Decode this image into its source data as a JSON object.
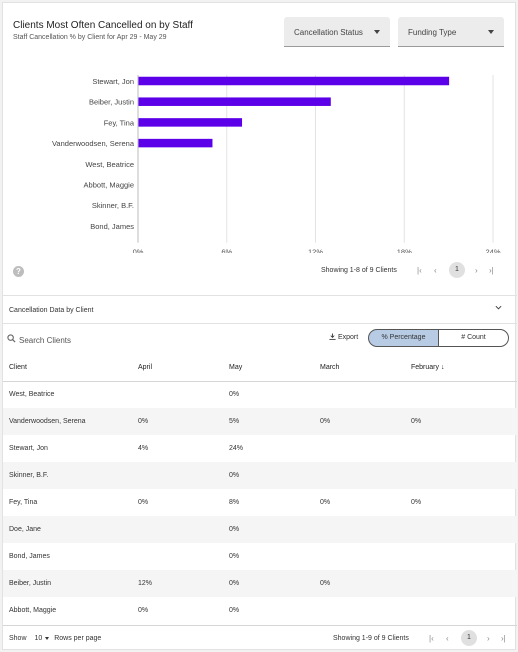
{
  "header": {
    "title": "Clients Most Often Cancelled on by Staff",
    "subtitle": "Staff Cancellation % by Client for Apr 29 - May 29"
  },
  "filters": {
    "cancellation_status": "Cancellation Status",
    "funding_type": "Funding Type"
  },
  "chart_data": {
    "type": "bar",
    "orientation": "horizontal",
    "categories": [
      "Stewart, Jon",
      "Beiber, Justin",
      "Fey, Tina",
      "Vanderwoodsen, Serena",
      "West, Beatrice",
      "Abbott, Maggie",
      "Skinner, B.F.",
      "Bond, James"
    ],
    "values": [
      21,
      13,
      7,
      5,
      0,
      0,
      0,
      0
    ],
    "xticks": [
      "0%",
      "6%",
      "12%",
      "18%",
      "24%"
    ],
    "xlim": [
      0,
      24
    ],
    "grid": true,
    "bar_color": "#5b00e8"
  },
  "chart_pager": {
    "showing": "Showing 1-8 of 9 Clients",
    "page": "1",
    "first": "|‹",
    "prev": "‹",
    "next": "›",
    "last": "›|"
  },
  "help_icon": "?",
  "section": {
    "title": "Cancellation Data by Client"
  },
  "toolbar": {
    "search_placeholder": "Search Clients",
    "export_label": "Export",
    "toggle_percentage": "% Percentage",
    "toggle_count": "# Count"
  },
  "table": {
    "columns": [
      "Client",
      "April",
      "May",
      "March",
      "February"
    ],
    "sort_icon": "↓",
    "rows": [
      [
        "West, Beatrice",
        "",
        "0%",
        "",
        ""
      ],
      [
        "Vanderwoodsen, Serena",
        "0%",
        "5%",
        "0%",
        "0%"
      ],
      [
        "Stewart, Jon",
        "4%",
        "24%",
        "",
        ""
      ],
      [
        "Skinner, B.F.",
        "",
        "0%",
        "",
        ""
      ],
      [
        "Fey, Tina",
        "0%",
        "8%",
        "0%",
        "0%"
      ],
      [
        "Doe, Jane",
        "",
        "0%",
        "",
        ""
      ],
      [
        "Bond, James",
        "",
        "0%",
        "",
        ""
      ],
      [
        "Beiber, Justin",
        "12%",
        "0%",
        "0%",
        ""
      ],
      [
        "Abbott, Maggie",
        "0%",
        "0%",
        "",
        ""
      ]
    ]
  },
  "table_footer": {
    "show_label": "Show",
    "rows_per_page": "10",
    "rows_per_page_label": "Rows per page",
    "showing": "Showing 1-9 of 9 Clients",
    "page": "1",
    "first": "|‹",
    "prev": "‹",
    "next": "›",
    "last": "›|"
  },
  "colors": {
    "accent": "#5b00e8",
    "toggle_active": "#b7cbe5"
  }
}
